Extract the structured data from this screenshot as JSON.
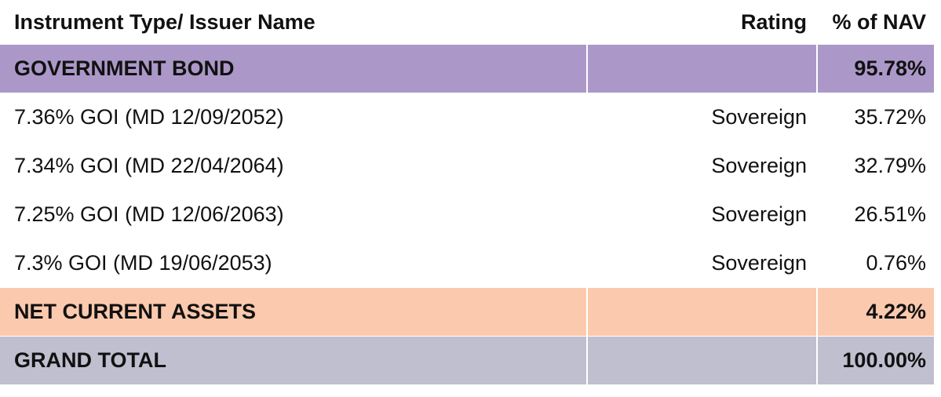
{
  "table": {
    "header": [
      "Instrument Type/ Issuer Name",
      "Rating",
      "% of NAV"
    ],
    "rows": [
      {
        "name": "GOVERNMENT BOND",
        "nav": "95.78%"
      },
      {
        "name": "7.36% GOI (MD 12/09/2052)",
        "rating": "Sovereign",
        "nav": "35.72%"
      },
      {
        "name": "7.34% GOI (MD 22/04/2064)",
        "rating": "Sovereign",
        "nav": "32.79%"
      },
      {
        "name": "7.25% GOI (MD 12/06/2063)",
        "rating": "Sovereign",
        "nav": "26.51%"
      },
      {
        "name": "7.3% GOI (MD 19/06/2053)",
        "rating": "Sovereign",
        "nav": "0.76%"
      },
      {
        "name": "NET CURRENT ASSETS",
        "nav": "4.22%"
      },
      {
        "name": "GRAND TOTAL",
        "nav": "100.00%"
      }
    ]
  }
}
